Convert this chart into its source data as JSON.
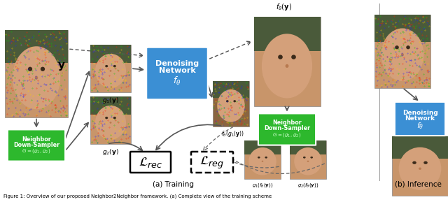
{
  "figure_width": 6.4,
  "figure_height": 2.89,
  "dpi": 100,
  "background_color": "#ffffff",
  "caption_line1": "Figure 1: Overview of our proposed Neighbor2Neighbor framework. (a) Complete view of the training scheme",
  "subtitle_training": "(a) Training",
  "subtitle_inference": "(b) Inference",
  "blue_box_color": "#3B8FD4",
  "green_box_color": "#2DB82D",
  "label_y": "$\\mathbf{y}$",
  "label_ftheta_y": "$f_\\theta(\\mathbf{y})$",
  "label_g1y": "$g_1(\\mathbf{y})$",
  "label_g2y": "$g_2(\\mathbf{y})$",
  "label_ftheta_g1y": "$f_\\theta(g_1(\\mathbf{y}))$",
  "label_g1_ftheta_y": "$g_1(f_\\theta(\\mathbf{y}))$",
  "label_g2_ftheta_y": "$g_2(f_\\theta(\\mathbf{y}))$",
  "label_Lrec": "$\\mathcal{L}_{rec}$",
  "label_Lreg": "$\\mathcal{L}_{reg}$"
}
